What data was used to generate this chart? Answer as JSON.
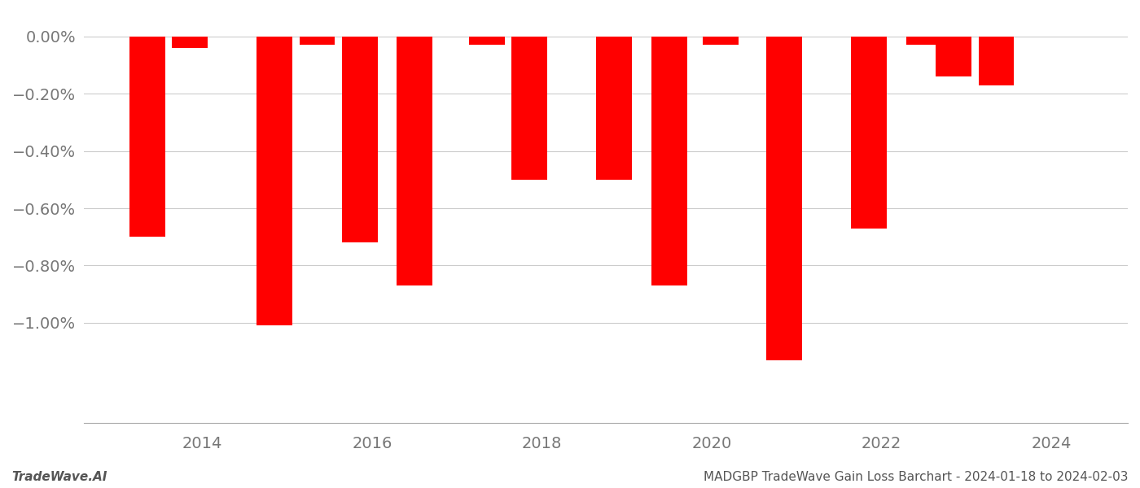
{
  "bar_data": [
    {
      "x": 2013.35,
      "v": -0.007
    },
    {
      "x": 2013.85,
      "v": -0.0004
    },
    {
      "x": 2014.85,
      "v": -0.0101
    },
    {
      "x": 2015.35,
      "v": -0.0003
    },
    {
      "x": 2015.85,
      "v": -0.0072
    },
    {
      "x": 2016.5,
      "v": -0.0087
    },
    {
      "x": 2017.35,
      "v": -0.0003
    },
    {
      "x": 2017.85,
      "v": -0.005
    },
    {
      "x": 2018.85,
      "v": -0.005
    },
    {
      "x": 2019.5,
      "v": -0.0087
    },
    {
      "x": 2020.1,
      "v": -0.0003
    },
    {
      "x": 2020.85,
      "v": -0.0113
    },
    {
      "x": 2021.85,
      "v": -0.0067
    },
    {
      "x": 2022.5,
      "v": -0.0003
    },
    {
      "x": 2022.85,
      "v": -0.0014
    },
    {
      "x": 2023.35,
      "v": -0.0017
    }
  ],
  "bar_color": "#ff0000",
  "background_color": "#ffffff",
  "footer_left": "TradeWave.AI",
  "footer_right": "MADGBP TradeWave Gain Loss Barchart - 2024-01-18 to 2024-02-03",
  "xlim": [
    2012.6,
    2024.9
  ],
  "ylim": [
    -0.0135,
    0.00085
  ],
  "yticks": [
    0.0,
    -0.002,
    -0.004,
    -0.006,
    -0.008,
    -0.01
  ],
  "ytick_labels": [
    "0.00%",
    "−0.20%",
    "−0.40%",
    "−0.60%",
    "−0.80%",
    "−1.00%"
  ],
  "xticks": [
    2014,
    2016,
    2018,
    2020,
    2022,
    2024
  ],
  "bar_width": 0.42
}
